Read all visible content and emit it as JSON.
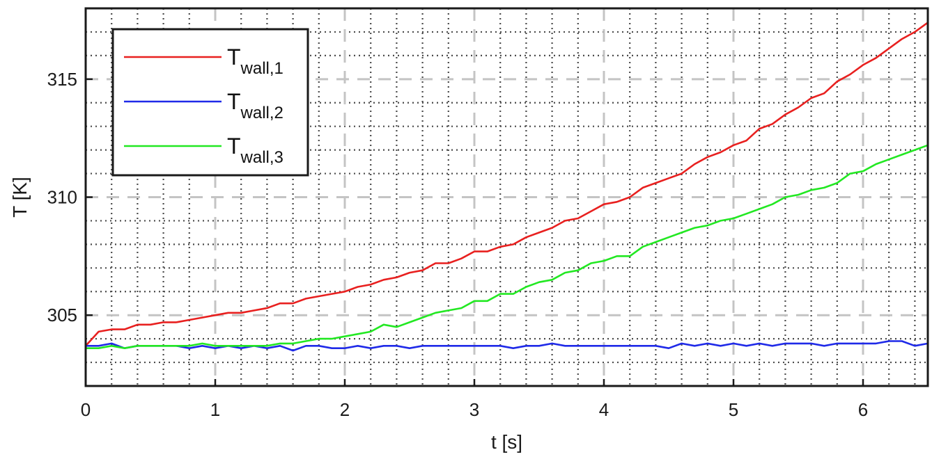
{
  "chart_data": {
    "type": "line",
    "xlabel": "t [s]",
    "ylabel": "T [K]",
    "xlim": [
      0,
      6.5
    ],
    "ylim": [
      302,
      318
    ],
    "xticks": [
      0,
      1,
      2,
      3,
      4,
      5,
      6
    ],
    "yticks": [
      305,
      310,
      315
    ],
    "grid": {
      "major": "dashed",
      "minor": "dotted"
    },
    "legend_position": "top-left",
    "series": [
      {
        "name": "T_wall,1",
        "legend_main": "T",
        "legend_sub": "wall,1",
        "color": "#e8201f",
        "x": [
          0,
          0.1,
          0.2,
          0.3,
          0.4,
          0.5,
          0.6,
          0.7,
          0.8,
          0.9,
          1.0,
          1.1,
          1.2,
          1.3,
          1.4,
          1.5,
          1.6,
          1.7,
          1.8,
          1.9,
          2.0,
          2.1,
          2.2,
          2.3,
          2.4,
          2.5,
          2.6,
          2.7,
          2.8,
          2.9,
          3.0,
          3.1,
          3.2,
          3.3,
          3.4,
          3.5,
          3.6,
          3.7,
          3.8,
          3.9,
          4.0,
          4.1,
          4.2,
          4.3,
          4.4,
          4.5,
          4.6,
          4.7,
          4.8,
          4.9,
          5.0,
          5.1,
          5.2,
          5.3,
          5.4,
          5.5,
          5.6,
          5.7,
          5.8,
          5.9,
          6.0,
          6.1,
          6.2,
          6.3,
          6.4,
          6.5
        ],
        "values": [
          303.7,
          304.3,
          304.4,
          304.4,
          304.6,
          304.6,
          304.7,
          304.7,
          304.8,
          304.9,
          305.0,
          305.1,
          305.1,
          305.2,
          305.3,
          305.5,
          305.5,
          305.7,
          305.8,
          305.9,
          306.0,
          306.2,
          306.3,
          306.5,
          306.6,
          306.8,
          306.9,
          307.2,
          307.2,
          307.4,
          307.7,
          307.7,
          307.9,
          308.0,
          308.3,
          308.5,
          308.7,
          309.0,
          309.1,
          309.4,
          309.7,
          309.8,
          310.0,
          310.4,
          310.6,
          310.8,
          311.0,
          311.4,
          311.7,
          311.9,
          312.2,
          312.4,
          312.9,
          313.1,
          313.5,
          313.8,
          314.2,
          314.4,
          314.9,
          315.2,
          315.6,
          315.9,
          316.3,
          316.7,
          317.0,
          317.4
        ]
      },
      {
        "name": "T_wall,2",
        "legend_main": "T",
        "legend_sub": "wall,2",
        "color": "#1f2ae8",
        "x": [
          0,
          0.1,
          0.2,
          0.3,
          0.4,
          0.5,
          0.6,
          0.7,
          0.8,
          0.9,
          1.0,
          1.1,
          1.2,
          1.3,
          1.4,
          1.5,
          1.6,
          1.7,
          1.8,
          1.9,
          2.0,
          2.1,
          2.2,
          2.3,
          2.4,
          2.5,
          2.6,
          2.7,
          2.8,
          2.9,
          3.0,
          3.1,
          3.2,
          3.3,
          3.4,
          3.5,
          3.6,
          3.7,
          3.8,
          3.9,
          4.0,
          4.1,
          4.2,
          4.3,
          4.4,
          4.5,
          4.6,
          4.7,
          4.8,
          4.9,
          5.0,
          5.1,
          5.2,
          5.3,
          5.4,
          5.5,
          5.6,
          5.7,
          5.8,
          5.9,
          6.0,
          6.1,
          6.2,
          6.3,
          6.4,
          6.5
        ],
        "values": [
          303.7,
          303.7,
          303.8,
          303.6,
          303.7,
          303.7,
          303.7,
          303.7,
          303.6,
          303.7,
          303.6,
          303.7,
          303.6,
          303.7,
          303.6,
          303.7,
          303.5,
          303.7,
          303.7,
          303.6,
          303.6,
          303.7,
          303.6,
          303.7,
          303.7,
          303.6,
          303.7,
          303.7,
          303.7,
          303.7,
          303.7,
          303.7,
          303.7,
          303.6,
          303.7,
          303.7,
          303.8,
          303.7,
          303.7,
          303.7,
          303.7,
          303.7,
          303.7,
          303.7,
          303.7,
          303.6,
          303.8,
          303.7,
          303.8,
          303.7,
          303.8,
          303.7,
          303.8,
          303.7,
          303.8,
          303.8,
          303.8,
          303.7,
          303.8,
          303.8,
          303.8,
          303.8,
          303.9,
          303.9,
          303.7,
          303.8
        ]
      },
      {
        "name": "T_wall,3",
        "legend_main": "T",
        "legend_sub": "wall,3",
        "color": "#22e822",
        "x": [
          0,
          0.1,
          0.2,
          0.3,
          0.4,
          0.5,
          0.6,
          0.7,
          0.8,
          0.9,
          1.0,
          1.1,
          1.2,
          1.3,
          1.4,
          1.5,
          1.6,
          1.7,
          1.8,
          1.9,
          2.0,
          2.1,
          2.2,
          2.3,
          2.4,
          2.5,
          2.6,
          2.7,
          2.8,
          2.9,
          3.0,
          3.1,
          3.2,
          3.3,
          3.4,
          3.5,
          3.6,
          3.7,
          3.8,
          3.9,
          4.0,
          4.1,
          4.2,
          4.3,
          4.4,
          4.5,
          4.6,
          4.7,
          4.8,
          4.9,
          5.0,
          5.1,
          5.2,
          5.3,
          5.4,
          5.5,
          5.6,
          5.7,
          5.8,
          5.9,
          6.0,
          6.1,
          6.2,
          6.3,
          6.4,
          6.5
        ],
        "values": [
          303.6,
          303.6,
          303.7,
          303.6,
          303.7,
          303.7,
          303.7,
          303.7,
          303.7,
          303.8,
          303.7,
          303.7,
          303.7,
          303.7,
          303.7,
          303.8,
          303.8,
          303.9,
          304.0,
          304.0,
          304.1,
          304.2,
          304.3,
          304.6,
          304.5,
          304.7,
          304.9,
          305.1,
          305.2,
          305.3,
          305.6,
          305.6,
          305.9,
          305.9,
          306.2,
          306.4,
          306.5,
          306.8,
          306.9,
          307.2,
          307.3,
          307.5,
          307.5,
          307.9,
          308.1,
          308.3,
          308.5,
          308.7,
          308.8,
          309.0,
          309.1,
          309.3,
          309.5,
          309.7,
          310.0,
          310.1,
          310.3,
          310.4,
          310.6,
          311.0,
          311.1,
          311.4,
          311.6,
          311.8,
          312.0,
          312.2
        ]
      }
    ]
  }
}
